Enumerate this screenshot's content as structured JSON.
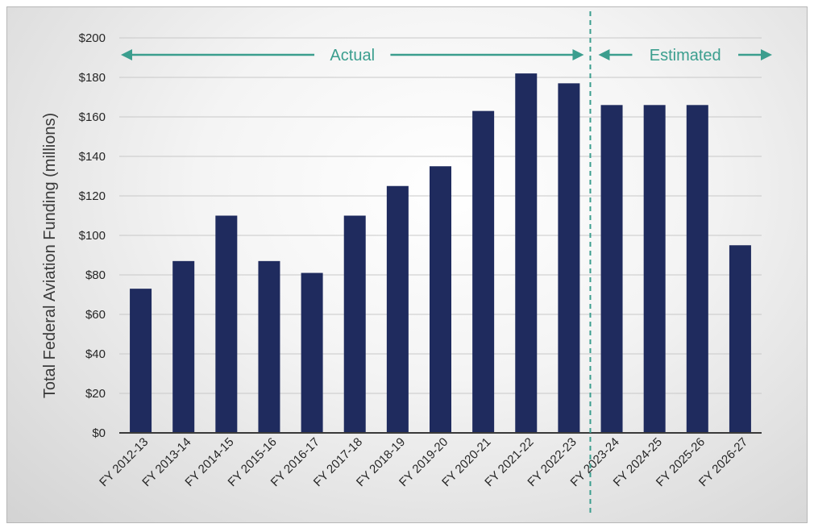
{
  "chart_data": {
    "type": "bar",
    "categories": [
      "FY 2012-13",
      "FY 2013-14",
      "FY 2014-15",
      "FY 2015-16",
      "FY 2016-17",
      "FY 2017-18",
      "FY 2018-19",
      "FY 2019-20",
      "FY 2020-21",
      "FY 2021-22",
      "FY 2022-23",
      "FY 2023-24",
      "FY 2024-25",
      "FY 2025-26",
      "FY 2026-27"
    ],
    "values": [
      73,
      87,
      110,
      87,
      81,
      110,
      125,
      135,
      163,
      182,
      177,
      166,
      166,
      166,
      95
    ],
    "ylabel": "Total Federal Aviation Funding (millions)",
    "xlabel": "",
    "ylim": [
      0,
      200
    ],
    "yticks": [
      "$0",
      "$20",
      "$40",
      "$60",
      "$80",
      "$100",
      "$120",
      "$140",
      "$160",
      "$180",
      "$200"
    ],
    "grid": true,
    "regions": [
      {
        "label": "Actual",
        "from_category": "FY 2012-13",
        "to_category": "FY 2022-23"
      },
      {
        "label": "Estimated",
        "from_category": "FY 2023-24",
        "to_category": "FY 2026-27"
      }
    ],
    "colors": {
      "bar": "#1f2b5e",
      "annotation": "#3b9e8e",
      "grid": "#c8c8c8"
    }
  }
}
